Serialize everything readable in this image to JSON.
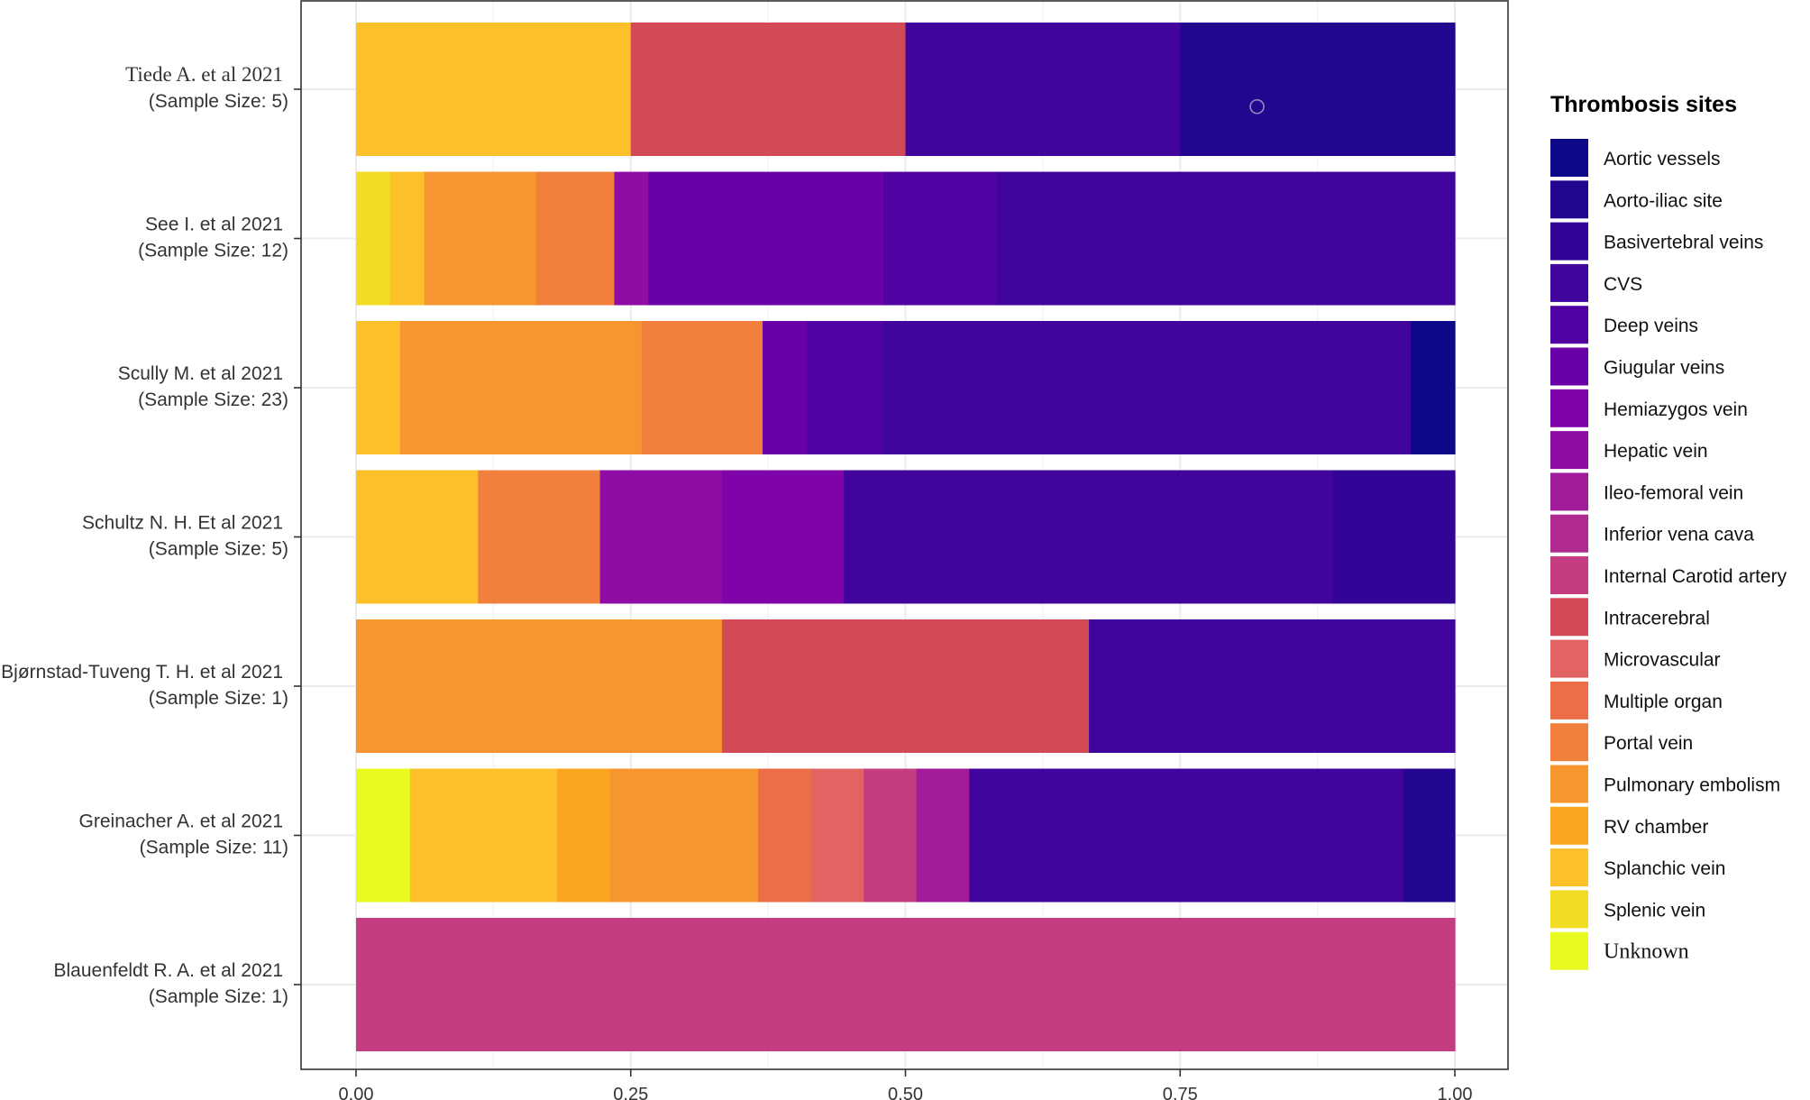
{
  "chart_data": {
    "type": "bar",
    "orientation": "horizontal",
    "stacked": true,
    "normalized": true,
    "title": "",
    "xlabel": "",
    "ylabel": "",
    "xlim": [
      0,
      1
    ],
    "x_ticks": [
      "0.00",
      "0.25",
      "0.50",
      "0.75",
      "1.00"
    ],
    "grid": true,
    "legend": {
      "title": "Thrombosis sites",
      "position": "right",
      "entries": [
        {
          "name": "Aortic vessels",
          "color": "#0d0887"
        },
        {
          "name": "Aorto-iliac site",
          "color": "#220690"
        },
        {
          "name": "Basivertebral veins",
          "color": "#330597"
        },
        {
          "name": "CVS",
          "color": "#41049d"
        },
        {
          "name": "Deep veins",
          "color": "#5002a2"
        },
        {
          "name": "Giugular veins",
          "color": "#6a00a8"
        },
        {
          "name": "Hemiazygos vein",
          "color": "#7e03a8"
        },
        {
          "name": "Hepatic vein",
          "color": "#8f0da4"
        },
        {
          "name": "Ileo-femoral vein",
          "color": "#a11b9b"
        },
        {
          "name": "Inferior vena cava",
          "color": "#b12a90"
        },
        {
          "name": "Internal Carotid artery",
          "color": "#c33d80"
        },
        {
          "name": "Intracerebral",
          "color": "#d24a55"
        },
        {
          "name": "Microvascular",
          "color": "#e16462"
        },
        {
          "name": "Multiple organ",
          "color": "#ec6e46"
        },
        {
          "name": "Portal vein",
          "color": "#f1803c"
        },
        {
          "name": "Pulmonary embolism",
          "color": "#f79530"
        },
        {
          "name": "RV chamber",
          "color": "#fba41f"
        },
        {
          "name": "Splanchic vein",
          "color": "#fcc02a"
        },
        {
          "name": "Splenic vein",
          "color": "#f2dc24"
        },
        {
          "name": "Unknown",
          "color": "#e8fa1f"
        }
      ]
    },
    "categories": [
      {
        "title": "Tiede A. et al 2021",
        "subtitle": "(Sample Size: 5)",
        "serif": true,
        "segments": [
          {
            "site": "Splanchic vein",
            "value": 0.25
          },
          {
            "site": "Intracerebral",
            "value": 0.25
          },
          {
            "site": "CVS",
            "value": 0.25
          },
          {
            "site": "Aorto-iliac site",
            "value": 0.25
          }
        ]
      },
      {
        "title": "See I. et al 2021",
        "subtitle": "(Sample Size: 12)",
        "serif": false,
        "segments": [
          {
            "site": "Splenic vein",
            "value": 0.031
          },
          {
            "site": "Splanchic vein",
            "value": 0.031
          },
          {
            "site": "Pulmonary embolism",
            "value": 0.102
          },
          {
            "site": "Portal vein",
            "value": 0.071
          },
          {
            "site": "Hepatic vein",
            "value": 0.031
          },
          {
            "site": "Giugular veins",
            "value": 0.214
          },
          {
            "site": "Deep veins",
            "value": 0.103
          },
          {
            "site": "CVS",
            "value": 0.417
          }
        ]
      },
      {
        "title": "Scully M. et al 2021",
        "subtitle": "(Sample Size: 23)",
        "serif": false,
        "segments": [
          {
            "site": "Splanchic vein",
            "value": 0.04
          },
          {
            "site": "Pulmonary embolism",
            "value": 0.22
          },
          {
            "site": "Portal vein",
            "value": 0.11
          },
          {
            "site": "Giugular veins",
            "value": 0.04
          },
          {
            "site": "Deep veins",
            "value": 0.07
          },
          {
            "site": "CVS",
            "value": 0.48
          },
          {
            "site": "Aortic vessels",
            "value": 0.04
          }
        ]
      },
      {
        "title": "Schultz N. H. Et al 2021",
        "subtitle": "(Sample Size: 5)",
        "serif": false,
        "segments": [
          {
            "site": "Splanchic vein",
            "value": 0.111
          },
          {
            "site": "Portal vein",
            "value": 0.111
          },
          {
            "site": "Hepatic vein",
            "value": 0.111
          },
          {
            "site": "Hemiazygos vein",
            "value": 0.111
          },
          {
            "site": "CVS",
            "value": 0.445
          },
          {
            "site": "Basivertebral veins",
            "value": 0.111
          }
        ]
      },
      {
        "title": "Bjørnstad-Tuveng T. H. et al 2021",
        "subtitle": "(Sample Size: 1)",
        "serif": false,
        "segments": [
          {
            "site": "Pulmonary embolism",
            "value": 0.333
          },
          {
            "site": "Intracerebral",
            "value": 0.334
          },
          {
            "site": "CVS",
            "value": 0.333
          }
        ]
      },
      {
        "title": "Greinacher A. et al 2021",
        "subtitle": "(Sample Size: 11)",
        "serif": false,
        "segments": [
          {
            "site": "Unknown",
            "value": 0.049
          },
          {
            "site": "Splanchic vein",
            "value": 0.134
          },
          {
            "site": "RV chamber",
            "value": 0.048
          },
          {
            "site": "Pulmonary embolism",
            "value": 0.135
          },
          {
            "site": "Multiple organ",
            "value": 0.048
          },
          {
            "site": "Microvascular",
            "value": 0.048
          },
          {
            "site": "Internal Carotid artery",
            "value": 0.048
          },
          {
            "site": "Ileo-femoral vein",
            "value": 0.048
          },
          {
            "site": "CVS",
            "value": 0.395
          },
          {
            "site": "Aorto-iliac site",
            "value": 0.047
          }
        ]
      },
      {
        "title": "Blauenfeldt R. A. et al 2021",
        "subtitle": "(Sample Size: 1)",
        "serif": false,
        "segments": [
          {
            "site": "Internal Carotid artery",
            "value": 1.0
          }
        ]
      }
    ]
  }
}
